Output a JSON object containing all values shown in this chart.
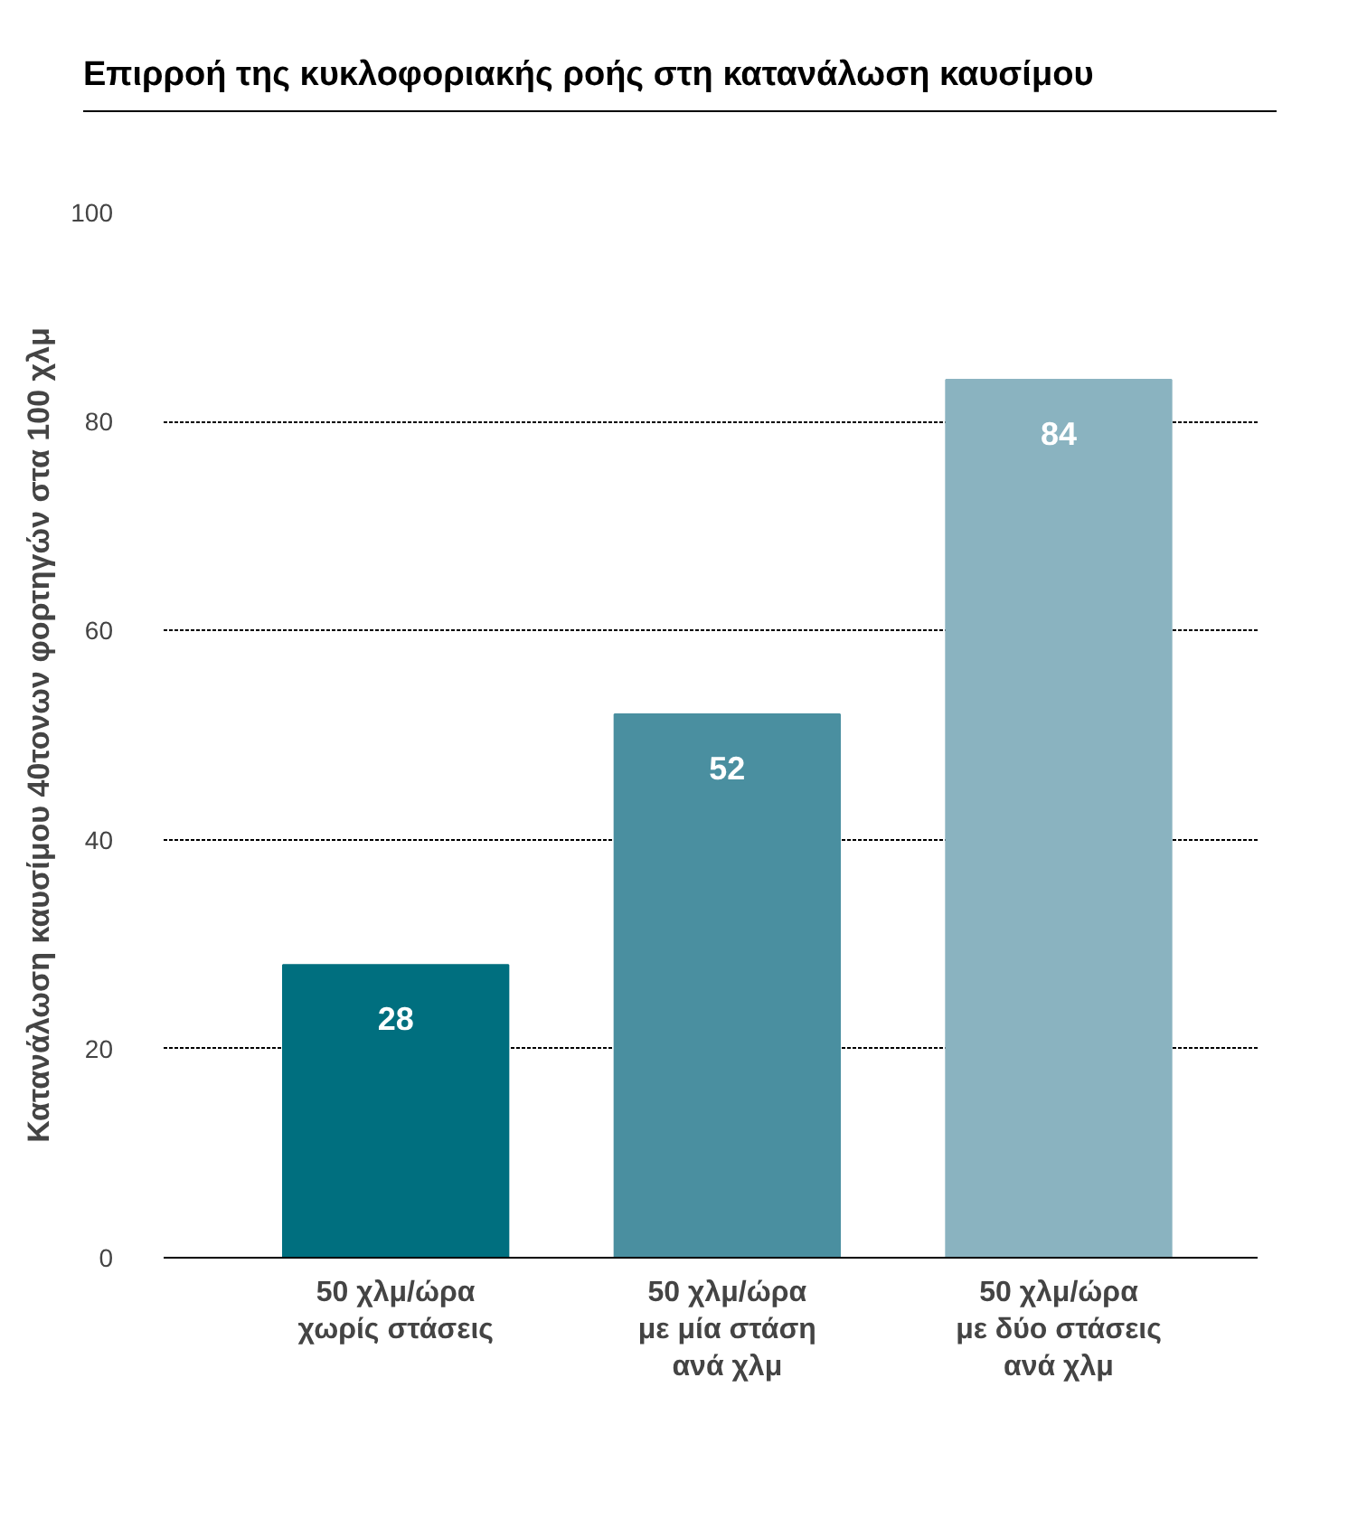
{
  "chart_data": {
    "type": "bar",
    "title": "Επιρροή της κυκλοφοριακής ροής στη κατανάλωση καυσίμου",
    "ylabel": "Κατανάλωση καυσίμου 40τονων φορτηγών στα 100 χλμ",
    "categories": [
      "50 χλμ/ώρα\nχωρίς στάσεις",
      "50 χλμ/ώρα\nμε μία στάση\nανά χλμ",
      "50 χλμ/ώρα\nμε δύο στάσεις\nανά χλμ"
    ],
    "values": [
      28,
      52,
      84
    ],
    "colors": [
      "#006f7f",
      "#4a8fa0",
      "#8ab3c0"
    ],
    "ylim": [
      0,
      100
    ],
    "yticks": [
      0,
      20,
      40,
      60,
      80,
      100
    ],
    "grid": "y",
    "data_labels": true
  }
}
